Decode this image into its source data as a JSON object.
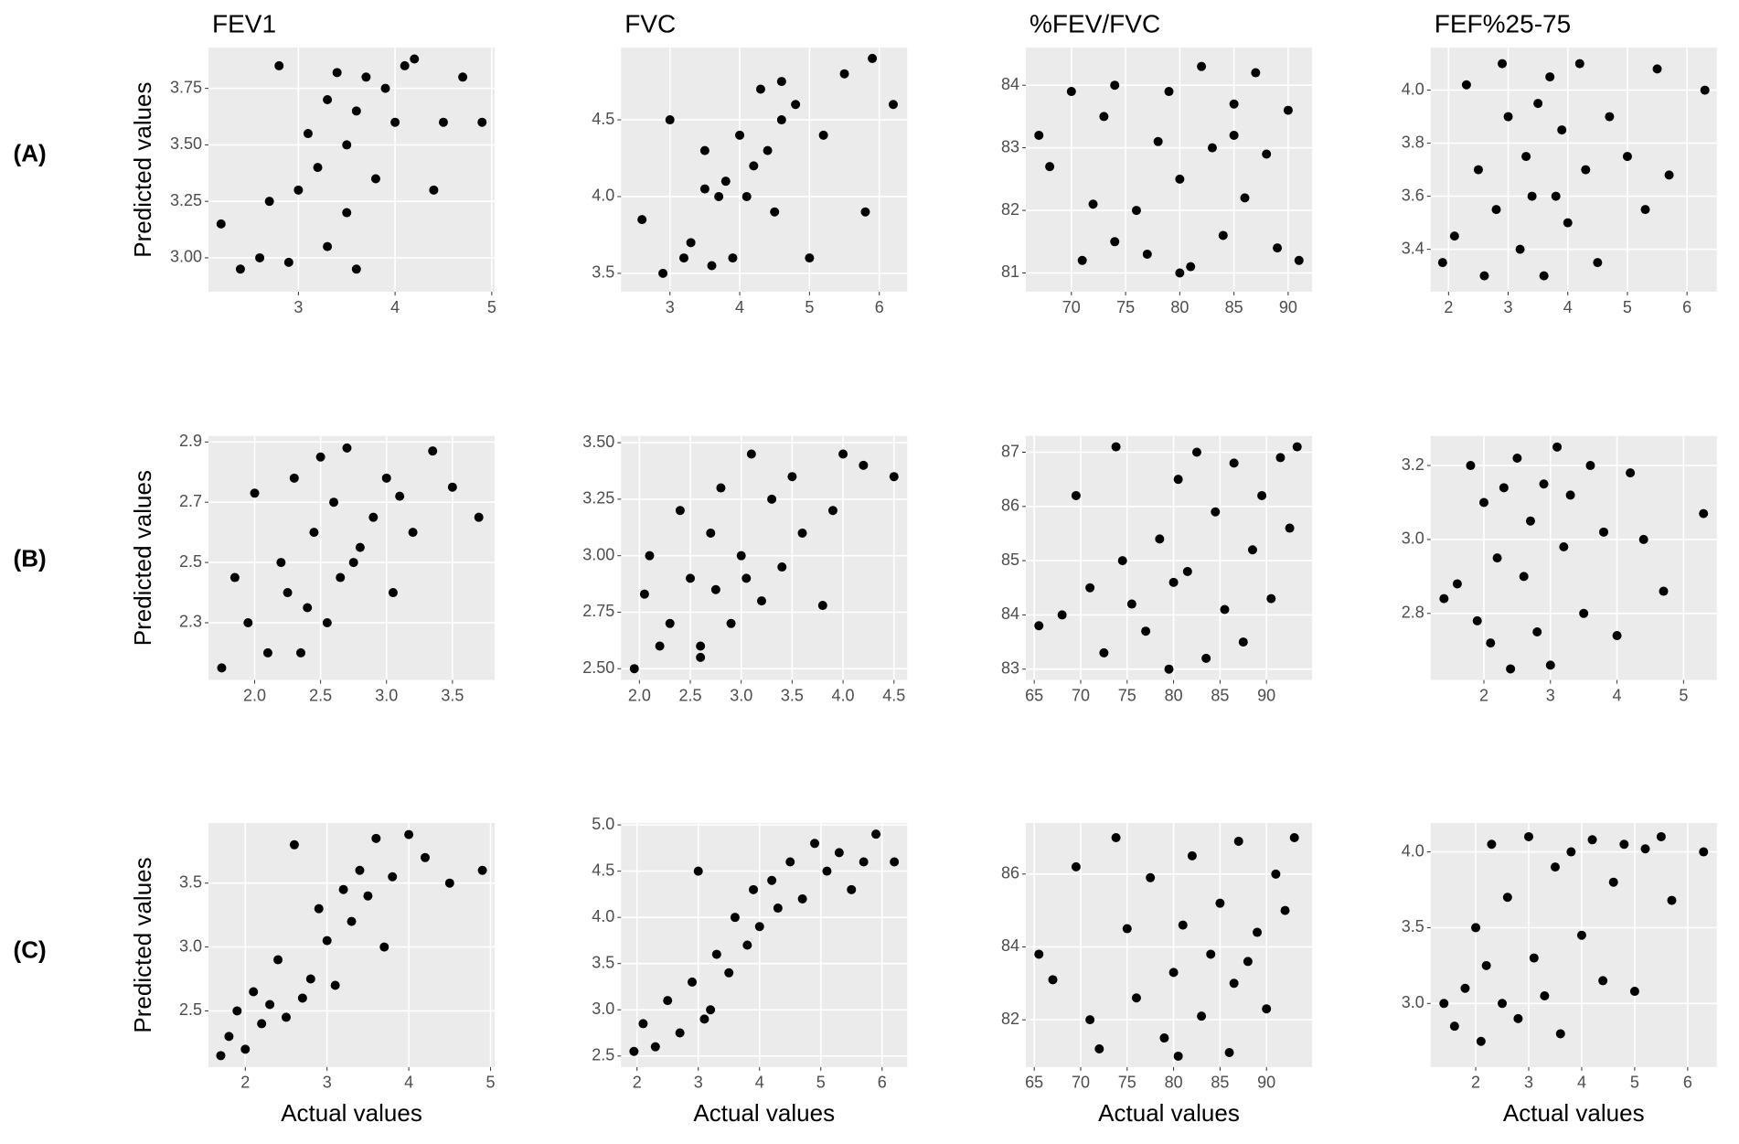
{
  "row_labels": [
    "(A)",
    "(B)",
    "(C)"
  ],
  "chart_data": [
    {
      "type": "scatter",
      "title": "FEV1",
      "ylabel": "Predicted values",
      "x": [
        2.2,
        2.4,
        2.6,
        2.8,
        2.9,
        3.0,
        3.1,
        3.2,
        3.3,
        3.3,
        3.4,
        3.5,
        3.5,
        3.6,
        3.7,
        3.8,
        3.9,
        4.0,
        4.1,
        4.2,
        4.4,
        4.5,
        4.7,
        4.9,
        2.7,
        3.6
      ],
      "y": [
        3.15,
        2.95,
        3.0,
        3.85,
        2.98,
        3.3,
        3.55,
        3.4,
        3.7,
        3.05,
        3.82,
        3.5,
        3.2,
        3.65,
        3.8,
        3.35,
        3.75,
        3.6,
        3.85,
        3.88,
        3.3,
        3.6,
        3.8,
        3.6,
        3.25,
        2.95
      ],
      "color": "#000000",
      "xlim": [
        2.07,
        5.03
      ],
      "ylim": [
        2.85,
        3.93
      ],
      "xticks": [
        3,
        4,
        5
      ],
      "yticks": [
        {
          "value": 3,
          "label": "3.00"
        },
        3.25,
        {
          "value": 3.5,
          "label": "3.50"
        },
        3.75
      ],
      "grid": true
    },
    {
      "type": "scatter",
      "title": "FVC",
      "x": [
        2.6,
        2.9,
        3.0,
        3.2,
        3.3,
        3.5,
        3.6,
        3.7,
        3.8,
        3.9,
        4.0,
        4.1,
        4.2,
        4.3,
        4.4,
        4.5,
        4.6,
        4.8,
        5.0,
        5.2,
        5.5,
        5.8,
        5.9,
        6.2,
        3.5,
        4.6
      ],
      "y": [
        3.85,
        3.5,
        4.5,
        3.6,
        3.7,
        4.3,
        3.55,
        4.0,
        4.1,
        3.6,
        4.4,
        4.0,
        4.2,
        4.7,
        4.3,
        3.9,
        4.5,
        4.6,
        3.6,
        4.4,
        4.8,
        3.9,
        4.9,
        4.6,
        4.05,
        4.75
      ],
      "color": "#000000",
      "xlim": [
        2.3,
        6.4
      ],
      "ylim": [
        3.38,
        4.97
      ],
      "xticks": [
        3,
        4,
        5,
        6
      ],
      "yticks": [
        3.5,
        {
          "value": 4,
          "label": "4.0"
        },
        4.5
      ],
      "grid": true
    },
    {
      "type": "scatter",
      "title": "%FEV/FVC",
      "x": [
        67,
        68,
        70,
        71,
        72,
        73,
        74,
        76,
        77,
        78,
        79,
        80,
        81,
        82,
        83,
        84,
        85,
        86,
        87,
        88,
        89,
        90,
        91,
        80,
        85,
        74
      ],
      "y": [
        83.2,
        82.7,
        83.9,
        81.2,
        82.1,
        83.5,
        84.0,
        82.0,
        81.3,
        83.1,
        83.9,
        82.5,
        81.1,
        84.3,
        83.0,
        81.6,
        83.7,
        82.2,
        84.2,
        82.9,
        81.4,
        83.6,
        81.2,
        81.0,
        83.2,
        81.5
      ],
      "color": "#000000",
      "xlim": [
        65.8,
        92.2
      ],
      "ylim": [
        80.7,
        84.6
      ],
      "xticks": [
        70,
        75,
        80,
        85,
        90
      ],
      "yticks": [
        81,
        82,
        83,
        84
      ],
      "grid": true
    },
    {
      "type": "scatter",
      "title": "FEF%25-75",
      "x": [
        1.9,
        2.1,
        2.3,
        2.5,
        2.6,
        2.8,
        2.9,
        3.0,
        3.2,
        3.3,
        3.5,
        3.6,
        3.7,
        3.8,
        3.9,
        4.0,
        4.2,
        4.3,
        4.5,
        4.7,
        5.0,
        5.3,
        5.5,
        5.7,
        6.3,
        3.4
      ],
      "y": [
        3.35,
        3.45,
        4.02,
        3.7,
        3.3,
        3.55,
        4.1,
        3.9,
        3.4,
        3.75,
        3.95,
        3.3,
        4.05,
        3.6,
        3.85,
        3.5,
        4.1,
        3.7,
        3.35,
        3.9,
        3.75,
        3.55,
        4.08,
        3.68,
        4.0,
        3.6
      ],
      "color": "#000000",
      "xlim": [
        1.7,
        6.5
      ],
      "ylim": [
        3.24,
        4.16
      ],
      "xticks": [
        2,
        3,
        4,
        5,
        6
      ],
      "yticks": [
        3.4,
        3.6,
        3.8,
        {
          "value": 4,
          "label": "4.0"
        }
      ],
      "grid": true
    },
    {
      "type": "scatter",
      "ylabel": "Predicted values",
      "x": [
        1.75,
        1.85,
        1.95,
        2.0,
        2.1,
        2.2,
        2.25,
        2.3,
        2.4,
        2.45,
        2.5,
        2.55,
        2.6,
        2.65,
        2.7,
        2.8,
        2.9,
        3.0,
        3.05,
        3.1,
        3.2,
        3.35,
        3.5,
        3.7,
        2.35,
        2.75
      ],
      "y": [
        2.15,
        2.45,
        2.3,
        2.73,
        2.2,
        2.5,
        2.4,
        2.78,
        2.35,
        2.6,
        2.85,
        2.3,
        2.7,
        2.45,
        2.88,
        2.55,
        2.65,
        2.78,
        2.4,
        2.72,
        2.6,
        2.87,
        2.75,
        2.65,
        2.2,
        2.5
      ],
      "color": "#000000",
      "xlim": [
        1.65,
        3.82
      ],
      "ylim": [
        2.11,
        2.92
      ],
      "xticks": [
        {
          "value": 2,
          "label": "2.0"
        },
        2.5,
        {
          "value": 3,
          "label": "3.0"
        },
        3.5
      ],
      "yticks": [
        2.3,
        2.5,
        2.7,
        2.9
      ],
      "grid": true
    },
    {
      "type": "scatter",
      "x": [
        1.95,
        2.05,
        2.1,
        2.2,
        2.3,
        2.4,
        2.5,
        2.6,
        2.7,
        2.75,
        2.8,
        2.9,
        3.0,
        3.1,
        3.2,
        3.3,
        3.4,
        3.5,
        3.6,
        3.8,
        3.9,
        4.0,
        4.2,
        4.5,
        2.6,
        3.05
      ],
      "y": [
        2.5,
        2.83,
        3.0,
        2.6,
        2.7,
        3.2,
        2.9,
        2.55,
        3.1,
        2.85,
        3.3,
        2.7,
        3.0,
        3.45,
        2.8,
        3.25,
        2.95,
        3.35,
        3.1,
        2.78,
        3.2,
        3.45,
        3.4,
        3.35,
        2.6,
        2.9
      ],
      "color": "#000000",
      "xlim": [
        1.82,
        4.63
      ],
      "ylim": [
        2.45,
        3.53
      ],
      "xticks": [
        {
          "value": 2,
          "label": "2.0"
        },
        2.5,
        {
          "value": 3,
          "label": "3.0"
        },
        3.5,
        {
          "value": 4,
          "label": "4.0"
        },
        4.5
      ],
      "yticks": [
        {
          "value": 2.5,
          "label": "2.50"
        },
        2.75,
        {
          "value": 3,
          "label": "3.00"
        },
        3.25,
        {
          "value": 3.5,
          "label": "3.50"
        }
      ],
      "grid": true
    },
    {
      "type": "scatter",
      "x": [
        65.5,
        68,
        69.5,
        71,
        72.5,
        73.8,
        74.5,
        75.5,
        77,
        78.5,
        79.5,
        80.5,
        81.5,
        82.5,
        83.5,
        84.5,
        85.5,
        86.5,
        87.5,
        88.5,
        89.5,
        90.5,
        91.5,
        92.5,
        93.3,
        80
      ],
      "y": [
        83.8,
        84.0,
        86.2,
        84.5,
        83.3,
        87.1,
        85.0,
        84.2,
        83.7,
        85.4,
        83.0,
        86.5,
        84.8,
        87.0,
        83.2,
        85.9,
        84.1,
        86.8,
        83.5,
        85.2,
        86.2,
        84.3,
        86.9,
        85.6,
        87.1,
        84.6
      ],
      "color": "#000000",
      "xlim": [
        64.1,
        94.9
      ],
      "ylim": [
        82.8,
        87.3
      ],
      "xticks": [
        65,
        70,
        75,
        80,
        85,
        90
      ],
      "yticks": [
        83,
        84,
        85,
        86,
        87
      ],
      "grid": true
    },
    {
      "type": "scatter",
      "x": [
        1.4,
        1.6,
        1.8,
        1.9,
        2.0,
        2.1,
        2.2,
        2.4,
        2.5,
        2.6,
        2.7,
        2.8,
        2.9,
        3.0,
        3.1,
        3.2,
        3.3,
        3.5,
        3.6,
        3.8,
        4.0,
        4.2,
        4.4,
        4.7,
        5.3,
        2.3
      ],
      "y": [
        2.84,
        2.88,
        3.2,
        2.78,
        3.1,
        2.72,
        2.95,
        2.65,
        3.22,
        2.9,
        3.05,
        2.75,
        3.15,
        2.66,
        3.25,
        2.98,
        3.12,
        2.8,
        3.2,
        3.02,
        2.74,
        3.18,
        3.0,
        2.86,
        3.07,
        3.14
      ],
      "color": "#000000",
      "xlim": [
        1.2,
        5.5
      ],
      "ylim": [
        2.62,
        3.28
      ],
      "xticks": [
        2,
        3,
        4,
        5
      ],
      "yticks": [
        2.8,
        {
          "value": 3,
          "label": "3.0"
        },
        3.2
      ],
      "grid": true
    },
    {
      "type": "scatter",
      "ylabel": "Predicted values",
      "xlabel": "Actual values",
      "x": [
        1.7,
        1.8,
        1.9,
        2.0,
        2.1,
        2.2,
        2.3,
        2.4,
        2.5,
        2.6,
        2.7,
        2.8,
        2.9,
        3.0,
        3.1,
        3.2,
        3.3,
        3.4,
        3.5,
        3.6,
        3.7,
        3.8,
        4.0,
        4.2,
        4.5,
        4.9
      ],
      "y": [
        2.15,
        2.3,
        2.5,
        2.2,
        2.65,
        2.4,
        2.55,
        2.9,
        2.45,
        3.8,
        2.6,
        2.75,
        3.3,
        3.05,
        2.7,
        3.45,
        3.2,
        3.6,
        3.4,
        3.85,
        3.0,
        3.55,
        3.88,
        3.7,
        3.5,
        3.6
      ],
      "color": "#000000",
      "xlim": [
        1.55,
        5.05
      ],
      "ylim": [
        2.06,
        3.97
      ],
      "xticks": [
        2,
        3,
        4,
        5
      ],
      "yticks": [
        2.5,
        {
          "value": 3,
          "label": "3.0"
        },
        3.5
      ],
      "grid": true
    },
    {
      "type": "scatter",
      "xlabel": "Actual values",
      "x": [
        1.95,
        2.1,
        2.3,
        2.5,
        2.7,
        2.9,
        3.0,
        3.2,
        3.3,
        3.5,
        3.6,
        3.8,
        3.9,
        4.0,
        4.2,
        4.3,
        4.5,
        4.7,
        4.9,
        5.1,
        5.3,
        5.5,
        5.7,
        5.9,
        6.2,
        3.1
      ],
      "y": [
        2.55,
        2.85,
        2.6,
        3.1,
        2.75,
        3.3,
        4.5,
        3.0,
        3.6,
        3.4,
        4.0,
        3.7,
        4.3,
        3.9,
        4.4,
        4.1,
        4.6,
        4.2,
        4.8,
        4.5,
        4.7,
        4.3,
        4.6,
        4.9,
        4.6,
        2.9
      ],
      "color": "#000000",
      "xlim": [
        1.74,
        6.41
      ],
      "ylim": [
        2.38,
        5.02
      ],
      "xticks": [
        2,
        3,
        4,
        5,
        6
      ],
      "yticks": [
        2.5,
        {
          "value": 3,
          "label": "3.0"
        },
        3.5,
        {
          "value": 4,
          "label": "4.0"
        },
        4.5,
        {
          "value": 5,
          "label": "5.0"
        }
      ],
      "grid": true
    },
    {
      "type": "scatter",
      "xlabel": "Actual values",
      "x": [
        65.5,
        67,
        69.5,
        71,
        72,
        73.8,
        75,
        76,
        77.5,
        79,
        80,
        81,
        82,
        83,
        84,
        85,
        86,
        87,
        88,
        89,
        90,
        91,
        92,
        93,
        80.5,
        86.5
      ],
      "y": [
        83.8,
        83.1,
        86.2,
        82.0,
        81.2,
        87.0,
        84.5,
        82.6,
        85.9,
        81.5,
        83.3,
        84.6,
        86.5,
        82.1,
        83.8,
        85.2,
        81.1,
        86.9,
        83.6,
        84.4,
        82.3,
        86.0,
        85.0,
        87.0,
        81.0,
        83.0
      ],
      "color": "#000000",
      "xlim": [
        64.1,
        94.9
      ],
      "ylim": [
        80.7,
        87.4
      ],
      "xticks": [
        65,
        70,
        75,
        80,
        85,
        90
      ],
      "yticks": [
        82,
        84,
        86
      ],
      "grid": true
    },
    {
      "type": "scatter",
      "xlabel": "Actual values",
      "x": [
        1.4,
        1.6,
        1.8,
        2.0,
        2.1,
        2.3,
        2.5,
        2.6,
        2.8,
        3.0,
        3.1,
        3.3,
        3.5,
        3.6,
        3.8,
        4.0,
        4.2,
        4.4,
        4.6,
        4.8,
        5.0,
        5.2,
        5.5,
        5.7,
        6.3,
        2.2
      ],
      "y": [
        3.0,
        2.85,
        3.1,
        3.5,
        2.75,
        4.05,
        3.0,
        3.7,
        2.9,
        4.1,
        3.3,
        3.05,
        3.9,
        2.8,
        4.0,
        3.45,
        4.08,
        3.15,
        3.8,
        4.05,
        3.08,
        4.02,
        4.1,
        3.68,
        4.0,
        3.25
      ],
      "color": "#000000",
      "xlim": [
        1.15,
        6.55
      ],
      "ylim": [
        2.58,
        4.19
      ],
      "xticks": [
        2,
        3,
        4,
        5,
        6
      ],
      "yticks": [
        {
          "value": 3,
          "label": "3.0"
        },
        3.5,
        {
          "value": 4,
          "label": "4.0"
        }
      ],
      "grid": true
    }
  ]
}
